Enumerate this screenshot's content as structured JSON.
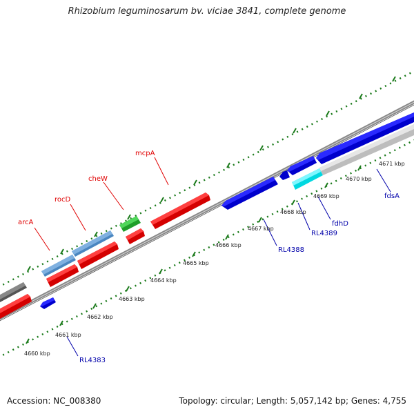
{
  "title": "Rhizobium leguminosarum bv. viciae 3841, complete genome",
  "footer": {
    "accession": "Accession: NC_008380",
    "summary": "Topology: circular; Length: 5,057,142 bp; Genes: 4,755"
  },
  "colors": {
    "backbone": "#999999",
    "tick": "#1a7a1a",
    "forward_gene": "#ff0000",
    "reverse_gene": "#0000ff",
    "rRNA": "#5b9bd5",
    "tRNA": "#2ecc40",
    "misc": "#00ffff",
    "pseudo": "#cccccc",
    "other": "#666666",
    "label_red": "#e00000",
    "label_blue": "#0000aa"
  },
  "scale_labels": [
    "4660 kbp",
    "4661 kbp",
    "4662 kbp",
    "4663 kbp",
    "4664 kbp",
    "4665 kbp",
    "4666 kbp",
    "4667 kbp",
    "4668 kbp",
    "4669 kbp",
    "4670 kbp",
    "4671 kbp"
  ],
  "gene_labels": [
    {
      "text": "arcA",
      "color": "#e00000"
    },
    {
      "text": "rocD",
      "color": "#e00000"
    },
    {
      "text": "cheW",
      "color": "#e00000"
    },
    {
      "text": "mcpA",
      "color": "#e00000"
    },
    {
      "text": "RL4383",
      "color": "#0000aa"
    },
    {
      "text": "RL4388",
      "color": "#0000aa"
    },
    {
      "text": "RL4389",
      "color": "#0000aa"
    },
    {
      "text": "fdhD",
      "color": "#0000aa"
    },
    {
      "text": "fdsA",
      "color": "#0000aa"
    }
  ]
}
